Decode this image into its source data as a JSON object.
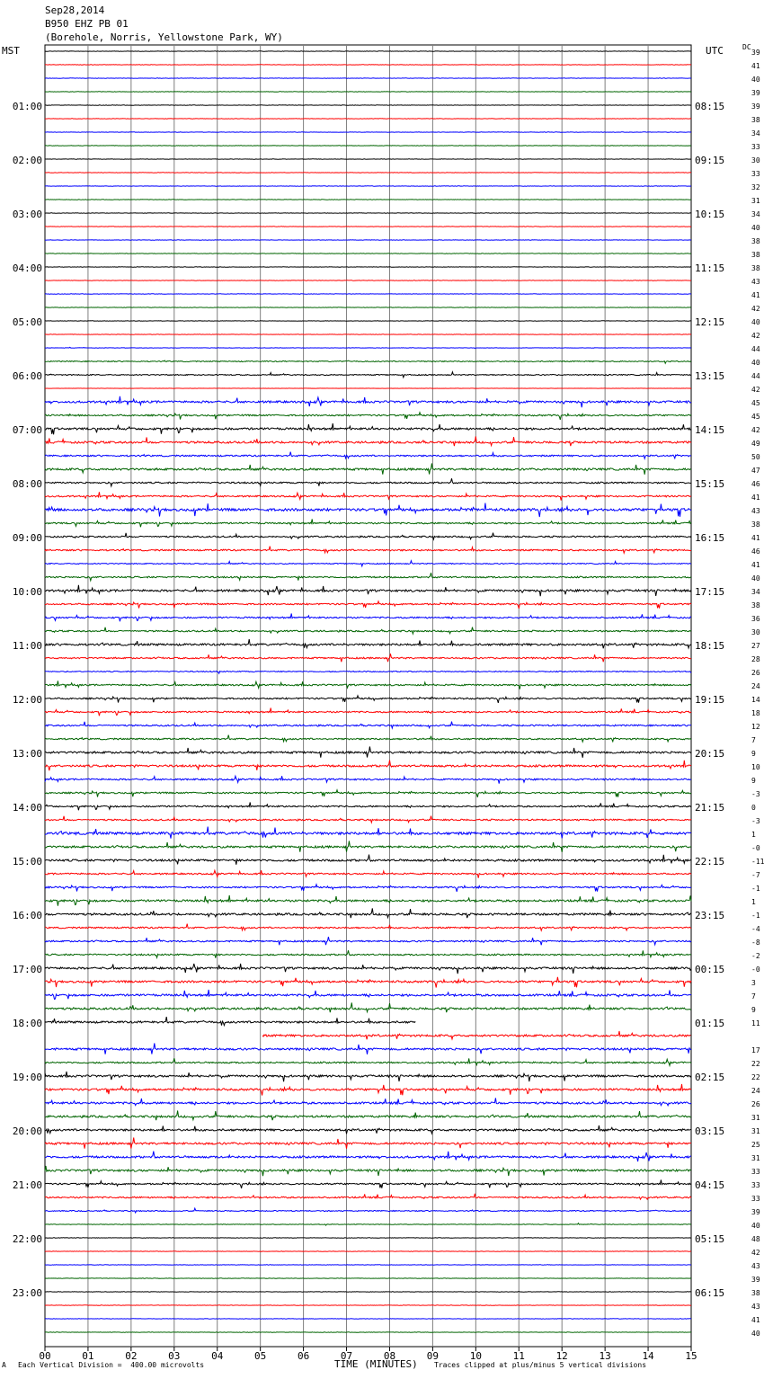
{
  "header": {
    "date": "Sep28,2014",
    "station": "B950 EHZ PB 01",
    "location": "(Borehole, Norris, Yellowstone Park, WY)"
  },
  "left_timezone": "MST",
  "right_timezone": "UTC",
  "dc_label": "DC",
  "footer": {
    "scale_note": "Each Vertical Division =  400.00 microvolts",
    "xaxis_title": "TIME (MINUTES)",
    "clip_note": "Traces clipped at plus/minus 5 vertical divisions",
    "corner_mark": "A"
  },
  "colors": {
    "black": "#000000",
    "red": "#ff0000",
    "blue": "#0000ff",
    "green": "#006400",
    "grid": "#7f7f7f"
  },
  "chart_data": {
    "type": "seismogram-helicorder",
    "x_unit": "minutes",
    "xlim": [
      0,
      15
    ],
    "x_ticks": [
      "00",
      "01",
      "02",
      "03",
      "04",
      "05",
      "06",
      "07",
      "08",
      "09",
      "10",
      "11",
      "12",
      "13",
      "14",
      "15"
    ],
    "rows_per_hour": 4,
    "row_minutes": 15,
    "left_hour_labels": [
      "01:00",
      "02:00",
      "03:00",
      "04:00",
      "05:00",
      "06:00",
      "07:00",
      "08:00",
      "09:00",
      "10:00",
      "11:00",
      "12:00",
      "13:00",
      "14:00",
      "15:00",
      "16:00",
      "17:00",
      "18:00",
      "19:00",
      "20:00",
      "21:00",
      "22:00",
      "23:00"
    ],
    "right_hour_labels": [
      "08:15",
      "09:15",
      "10:15",
      "11:15",
      "12:15",
      "13:15",
      "14:15",
      "15:15",
      "16:15",
      "17:15",
      "18:15",
      "19:15",
      "20:15",
      "21:15",
      "22:15",
      "23:15",
      "00:15",
      "01:15",
      "02:15",
      "03:15",
      "04:15",
      "05:15",
      "06:15"
    ],
    "trace_color_cycle": [
      "black",
      "red",
      "blue",
      "green"
    ],
    "dc_offsets": [
      "39",
      "41",
      "40",
      "39",
      "39",
      "38",
      "34",
      "33",
      "30",
      "33",
      "32",
      "31",
      "34",
      "40",
      "38",
      "38",
      "38",
      "43",
      "41",
      "42",
      "40",
      "42",
      "44",
      "40",
      "44",
      "42",
      "45",
      "45",
      "42",
      "49",
      "50",
      "47",
      "46",
      "41",
      "43",
      "38",
      "41",
      "46",
      "41",
      "40",
      "34",
      "38",
      "36",
      "30",
      "27",
      "28",
      "26",
      "24",
      "14",
      "18",
      "12",
      "7",
      "9",
      "10",
      "9",
      "-3",
      "0",
      "-3",
      "1",
      "-0",
      "-11",
      "-7",
      "-1",
      "1",
      "-1",
      "-4",
      "-8",
      "-2",
      "-0",
      "3",
      "7",
      "9",
      "11",
      "",
      "17",
      "22",
      "22",
      "24",
      "26",
      "31",
      "31",
      "25",
      "31",
      "33",
      "33",
      "33",
      "39",
      "40",
      "48",
      "42",
      "43",
      "39",
      "38",
      "43",
      "41",
      "40"
    ],
    "activity_level_per_row": [
      0,
      0,
      0,
      0,
      0,
      0,
      0,
      0,
      0,
      0,
      0,
      0,
      0,
      0,
      0,
      0,
      0,
      0,
      0,
      0,
      0,
      0,
      0.3,
      1,
      1,
      0.2,
      2,
      1.5,
      2,
      2,
      1.5,
      2,
      1.5,
      1.5,
      2.5,
      1.5,
      1.5,
      1.5,
      1,
      1.5,
      2,
      1.5,
      1.5,
      1.5,
      2,
      1.5,
      1,
      1.5,
      1.5,
      1.5,
      1.5,
      1.5,
      2,
      2,
      1.5,
      1.5,
      1.5,
      1.5,
      2.5,
      2,
      2,
      1.5,
      1.5,
      2,
      2,
      1.5,
      1.5,
      1.5,
      2,
      2,
      2,
      2,
      2,
      2,
      2,
      1.5,
      2,
      2,
      2,
      2,
      2,
      2,
      2,
      2,
      1.5,
      1.5,
      1,
      0.5,
      0,
      0,
      0,
      0,
      0,
      0,
      0,
      0
    ]
  }
}
